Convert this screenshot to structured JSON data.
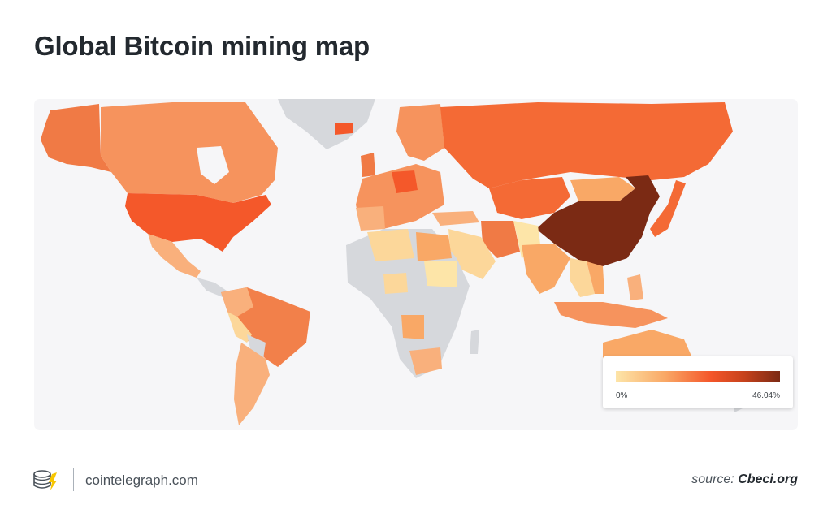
{
  "title": "Global Bitcoin mining map",
  "legend": {
    "min_label": "0%",
    "max_label": "46.04%"
  },
  "footer": {
    "site": "cointelegraph.com",
    "source_prefix": "source:",
    "source_name": "Cbeci.org"
  },
  "colors": {
    "no_data": "#d6d8dc",
    "scale": [
      "#fde5a8",
      "#f9a866",
      "#f4562a",
      "#c7421c",
      "#7b2a14"
    ],
    "background": "#f6f6f8"
  },
  "icons": {
    "logo": "cointelegraph-logo-icon"
  }
}
